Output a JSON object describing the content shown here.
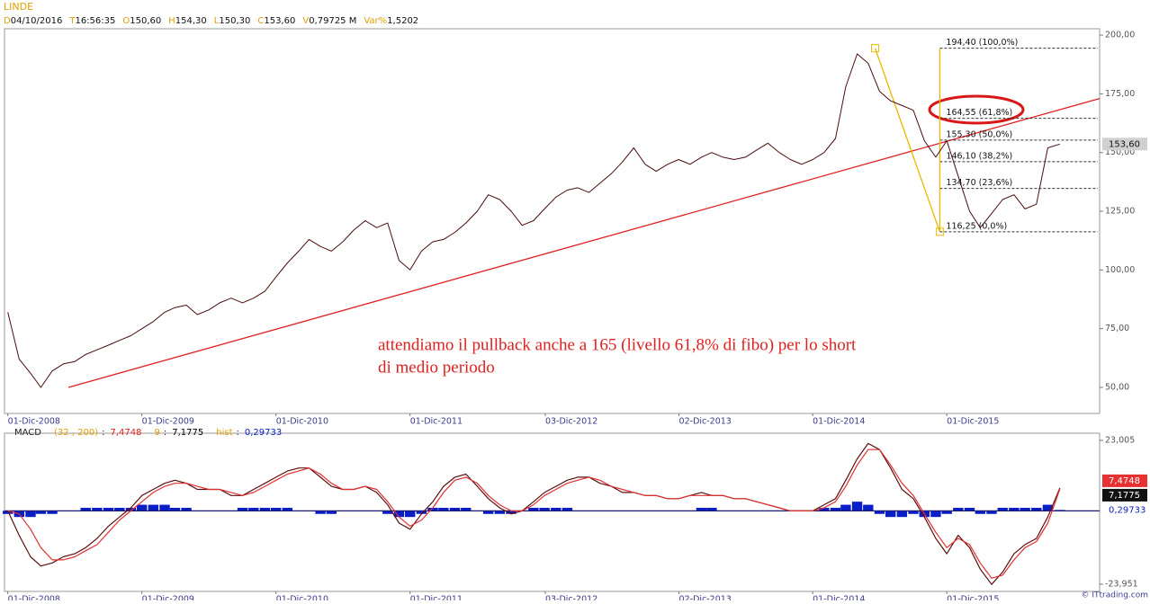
{
  "header": {
    "title": "LINDE",
    "fields": [
      {
        "key": "D",
        "value": "04/10/2016"
      },
      {
        "key": "T",
        "value": "16:56:35"
      },
      {
        "key": "O",
        "value": "150,60"
      },
      {
        "key": "H",
        "value": "154,30"
      },
      {
        "key": "L",
        "value": "150,30"
      },
      {
        "key": "C",
        "value": "153,60"
      },
      {
        "key": "V",
        "value": "0,79725 M"
      },
      {
        "key": "Var%",
        "value": "1,5202"
      }
    ]
  },
  "watermark": "© ITtrading.com",
  "chart_data": [
    {
      "type": "line",
      "x": [
        "2008-12-01",
        "2009-01-01",
        "2009-02-01",
        "2009-03-01",
        "2009-04-01",
        "2009-05-01",
        "2009-06-01",
        "2009-07-01",
        "2009-08-01",
        "2009-09-01",
        "2009-10-01",
        "2009-11-01",
        "2009-12-01",
        "2010-01-01",
        "2010-02-01",
        "2010-03-01",
        "2010-04-01",
        "2010-05-01",
        "2010-06-01",
        "2010-07-01",
        "2010-08-01",
        "2010-09-01",
        "2010-10-01",
        "2010-11-01",
        "2010-12-01",
        "2011-01-01",
        "2011-02-01",
        "2011-03-01",
        "2011-04-01",
        "2011-05-01",
        "2011-06-01",
        "2011-07-01",
        "2011-08-01",
        "2011-09-01",
        "2011-10-01",
        "2011-11-01",
        "2011-12-01",
        "2012-01-01",
        "2012-02-01",
        "2012-03-01",
        "2012-04-01",
        "2012-05-01",
        "2012-06-01",
        "2012-07-01",
        "2012-08-01",
        "2012-09-01",
        "2012-10-01",
        "2012-11-01",
        "2012-12-01",
        "2013-01-01",
        "2013-02-01",
        "2013-03-01",
        "2013-04-01",
        "2013-05-01",
        "2013-06-01",
        "2013-07-01",
        "2013-08-01",
        "2013-09-01",
        "2013-10-01",
        "2013-11-01",
        "2013-12-01",
        "2014-01-01",
        "2014-02-01",
        "2014-03-01",
        "2014-04-01",
        "2014-05-01",
        "2014-06-01",
        "2014-07-01",
        "2014-08-01",
        "2014-09-01",
        "2014-10-01",
        "2014-11-01",
        "2014-12-01",
        "2015-01-01",
        "2015-02-01",
        "2015-03-01",
        "2015-04-01",
        "2015-05-01",
        "2015-06-01",
        "2015-07-01",
        "2015-08-01",
        "2015-09-01",
        "2015-10-01",
        "2015-11-01",
        "2015-12-01",
        "2016-01-01",
        "2016-02-01",
        "2016-03-01",
        "2016-04-01",
        "2016-05-01",
        "2016-06-01",
        "2016-07-01",
        "2016-08-01",
        "2016-09-01",
        "2016-10-04"
      ],
      "values": [
        82,
        62,
        56,
        50,
        57,
        60,
        61,
        64,
        66,
        68,
        70,
        72,
        75,
        78,
        82,
        84,
        85,
        81,
        83,
        86,
        88,
        86,
        88,
        91,
        97,
        103,
        108,
        113,
        110,
        108,
        112,
        117,
        121,
        118,
        120,
        104,
        100,
        108,
        112,
        113,
        116,
        120,
        125,
        132,
        130,
        125,
        119,
        121,
        126,
        131,
        134,
        135,
        133,
        137,
        141,
        146,
        152,
        145,
        142,
        145,
        147,
        145,
        148,
        150,
        148,
        147,
        148,
        151,
        154,
        150,
        147,
        145,
        147,
        150,
        156,
        178,
        192,
        188,
        176,
        172,
        170,
        168,
        155,
        148,
        155,
        140,
        125,
        118,
        124,
        130,
        132,
        126,
        128,
        152,
        153.6
      ],
      "color": "#4a0c0c",
      "xlim": [
        "2008-11-22",
        "2017-01-20"
      ],
      "xticks": [
        {
          "value": "2008-12-01",
          "label": "01-Dic-2008"
        },
        {
          "value": "2009-12-01",
          "label": "01-Dic-2009"
        },
        {
          "value": "2010-12-01",
          "label": "01-Dic-2010"
        },
        {
          "value": "2011-12-01",
          "label": "01-Dic-2011"
        },
        {
          "value": "2012-12-03",
          "label": "03-Dic-2012"
        },
        {
          "value": "2013-12-02",
          "label": "02-Dic-2013"
        },
        {
          "value": "2014-12-01",
          "label": "01-Dic-2014"
        },
        {
          "value": "2015-12-01",
          "label": "01-Dic-2015"
        }
      ],
      "ylim": [
        38.9,
        202.7
      ],
      "yticks": [
        {
          "value": 50,
          "label": "50,00"
        },
        {
          "value": 75,
          "label": "75,00"
        },
        {
          "value": 100,
          "label": "100,00"
        },
        {
          "value": 125,
          "label": "125,00"
        },
        {
          "value": 150,
          "label": "150,00"
        },
        {
          "value": 175,
          "label": "175,00"
        },
        {
          "value": 200,
          "label": "200,00"
        }
      ],
      "last_label": {
        "value": 153.6,
        "label": "153,60"
      },
      "trendline": {
        "x": [
          "2009-05-15",
          "2017-01-20"
        ],
        "y": [
          50,
          173
        ],
        "color": "#e02020"
      },
      "fibonacci": {
        "x": [
          "2015-05-20",
          "2015-11-12"
        ],
        "color": "#e8b800",
        "levels": [
          {
            "value": 194.4,
            "label": "194,40 (100,0%)"
          },
          {
            "value": 164.55,
            "label": "164,55 (61,8%)"
          },
          {
            "value": 155.3,
            "label": "155,30 (50,0%)"
          },
          {
            "value": 146.1,
            "label": "146,10 (38,2%)"
          },
          {
            "value": 134.7,
            "label": "134,70 (23,6%)"
          },
          {
            "value": 116.25,
            "label": "116,25 (0,0%)"
          }
        ]
      },
      "annotation": [
        "attendiamo il pullback anche a 165 (livello 61,8% di fibo) per lo short",
        "di medio periodo"
      ]
    },
    {
      "type": "macd",
      "title": "MACD",
      "separator": ":",
      "x": [
        "2008-12-01",
        "2009-01-01",
        "2009-02-01",
        "2009-03-01",
        "2009-04-01",
        "2009-05-01",
        "2009-06-01",
        "2009-07-01",
        "2009-08-01",
        "2009-09-01",
        "2009-10-01",
        "2009-11-01",
        "2009-12-01",
        "2010-01-01",
        "2010-02-01",
        "2010-03-01",
        "2010-04-01",
        "2010-05-01",
        "2010-06-01",
        "2010-07-01",
        "2010-08-01",
        "2010-09-01",
        "2010-10-01",
        "2010-11-01",
        "2010-12-01",
        "2011-01-01",
        "2011-02-01",
        "2011-03-01",
        "2011-04-01",
        "2011-05-01",
        "2011-06-01",
        "2011-07-01",
        "2011-08-01",
        "2011-09-01",
        "2011-10-01",
        "2011-11-01",
        "2011-12-01",
        "2012-01-01",
        "2012-02-01",
        "2012-03-01",
        "2012-04-01",
        "2012-05-01",
        "2012-06-01",
        "2012-07-01",
        "2012-08-01",
        "2012-09-01",
        "2012-10-01",
        "2012-11-01",
        "2012-12-01",
        "2013-01-01",
        "2013-02-01",
        "2013-03-01",
        "2013-04-01",
        "2013-05-01",
        "2013-06-01",
        "2013-07-01",
        "2013-08-01",
        "2013-09-01",
        "2013-10-01",
        "2013-11-01",
        "2013-12-01",
        "2014-01-01",
        "2014-02-01",
        "2014-03-01",
        "2014-04-01",
        "2014-05-01",
        "2014-06-01",
        "2014-07-01",
        "2014-08-01",
        "2014-09-01",
        "2014-10-01",
        "2014-11-01",
        "2014-12-01",
        "2015-01-01",
        "2015-02-01",
        "2015-03-01",
        "2015-04-01",
        "2015-05-01",
        "2015-06-01",
        "2015-07-01",
        "2015-08-01",
        "2015-09-01",
        "2015-10-01",
        "2015-11-01",
        "2015-12-01",
        "2016-01-01",
        "2016-02-01",
        "2016-03-01",
        "2016-04-01",
        "2016-05-01",
        "2016-06-01",
        "2016-07-01",
        "2016-08-01",
        "2016-09-01",
        "2016-10-04"
      ],
      "xlim": [
        "2008-11-22",
        "2017-01-20"
      ],
      "xticks": [
        {
          "value": "2008-12-01",
          "label": "01-Dic-2008"
        },
        {
          "value": "2009-12-01",
          "label": "01-Dic-2009"
        },
        {
          "value": "2010-12-01",
          "label": "01-Dic-2010"
        },
        {
          "value": "2011-12-01",
          "label": "01-Dic-2011"
        },
        {
          "value": "2012-12-03",
          "label": "03-Dic-2012"
        },
        {
          "value": "2013-12-02",
          "label": "02-Dic-2013"
        },
        {
          "value": "2014-12-01",
          "label": "01-Dic-2014"
        },
        {
          "value": "2015-12-01",
          "label": "01-Dic-2015"
        }
      ],
      "ylim": [
        -26.3,
        25.35
      ],
      "yticks": [
        {
          "value": -23.951,
          "label": "-23,951"
        },
        {
          "value": 23.005,
          "label": "23,005"
        }
      ],
      "series": [
        {
          "name": "(32 , 200)",
          "color": "#5a1010",
          "kind": "line",
          "label_color": "#e02020",
          "values": [
            0,
            -8,
            -15,
            -18,
            -17,
            -15,
            -14,
            -12,
            -9,
            -5,
            -2,
            1,
            5,
            7,
            9,
            10,
            9,
            7,
            7,
            7,
            5,
            5,
            7,
            9,
            11,
            13,
            14,
            14,
            11,
            8,
            7,
            7,
            8,
            6,
            2,
            -4,
            -6,
            -1,
            3,
            8,
            11,
            12,
            8,
            4,
            1,
            -1,
            0,
            3,
            6,
            8,
            10,
            11,
            11,
            9,
            8,
            6,
            6,
            5,
            5,
            4,
            4,
            5,
            6,
            5,
            5,
            4,
            4,
            3,
            2,
            1,
            0,
            0,
            0,
            2,
            4,
            10,
            17,
            22,
            20,
            14,
            7,
            4,
            -2,
            -9,
            -14,
            -8,
            -12,
            -19,
            -24,
            -20,
            -14,
            -11,
            -9,
            -2,
            7.4748
          ],
          "last_label": {
            "value": 7.4748,
            "label": "7,4748"
          }
        },
        {
          "name": "9",
          "color": "#e03030",
          "kind": "line",
          "label_color": "#000000",
          "values": [
            0,
            -1,
            -6,
            -12,
            -16,
            -16,
            -15,
            -13,
            -11,
            -7,
            -3,
            0,
            3,
            6,
            8,
            9,
            9,
            8,
            7,
            7,
            6,
            5,
            6,
            8,
            10,
            12,
            13,
            14,
            12,
            9,
            7,
            7,
            8,
            7,
            3,
            -2,
            -5,
            -3,
            1,
            6,
            10,
            11,
            9,
            5,
            2,
            0,
            0,
            2,
            5,
            7,
            9,
            10,
            11,
            10,
            8,
            7,
            6,
            5,
            5,
            4,
            4,
            5,
            5,
            5,
            5,
            4,
            4,
            3,
            2,
            1,
            0,
            0,
            0,
            1,
            3,
            8,
            15,
            20,
            20,
            15,
            9,
            5,
            -1,
            -7,
            -12,
            -9,
            -11,
            -17,
            -22,
            -21,
            -16,
            -12,
            -10,
            -4,
            7.1775
          ],
          "last_label": {
            "value": 7.1775,
            "label": "7,1775"
          }
        },
        {
          "name": "hist",
          "color": "#0a1ec8",
          "kind": "bar",
          "label_color": "#0a1ec8",
          "values": [
            -1,
            -2,
            -2,
            -1,
            -1,
            0,
            0,
            1,
            1,
            1,
            1,
            1,
            2,
            2,
            2,
            1,
            1,
            0,
            0,
            0,
            0,
            1,
            1,
            1,
            1,
            1,
            0,
            0,
            -1,
            -1,
            0,
            0,
            0,
            0,
            -1,
            -2,
            -2,
            -1,
            1,
            1,
            1,
            1,
            0,
            -1,
            -1,
            -1,
            0,
            1,
            1,
            1,
            1,
            0,
            0,
            0,
            0,
            0,
            0,
            0,
            0,
            0,
            0,
            0,
            1,
            1,
            0,
            0,
            0,
            0,
            0,
            0,
            0,
            0,
            0,
            1,
            1,
            2,
            3,
            2,
            -1,
            -2,
            -2,
            -1,
            -2,
            -2,
            -1,
            1,
            1,
            -1,
            -1,
            1,
            1,
            1,
            1,
            2,
            0.29733
          ],
          "last_label": {
            "value": 0.29733,
            "label": "0,29733"
          }
        }
      ]
    }
  ]
}
